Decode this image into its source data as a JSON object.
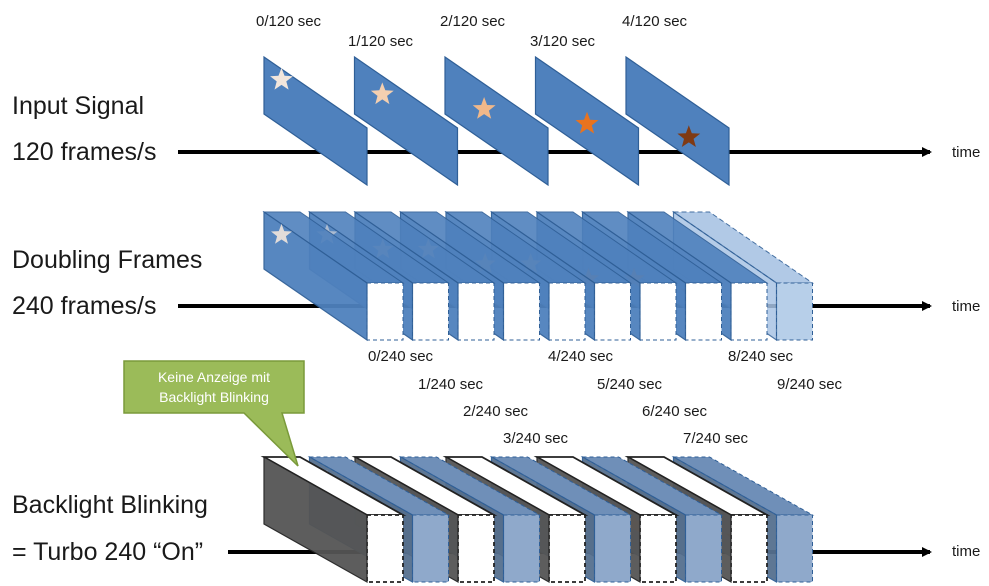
{
  "rows": {
    "input": {
      "line1": "Input Signal",
      "line2": "120 frames/s"
    },
    "doubling": {
      "line1": "Doubling Frames",
      "line2": "240 frames/s"
    },
    "backlight": {
      "line1": "Backlight Blinking",
      "line2": "= Turbo 240 “On”"
    }
  },
  "axis_label": "time",
  "labels_120": [
    "0/120 sec",
    "1/120 sec",
    "2/120 sec",
    "3/120 sec",
    "4/120 sec"
  ],
  "labels_240_doubling": [
    "0/240 sec",
    "1/240 sec",
    "4/240 sec",
    "5/240 sec",
    "8/240 sec",
    "9/240 sec"
  ],
  "labels_240_backlight": [
    "2/240 sec",
    "3/240 sec",
    "6/240 sec",
    "7/240 sec"
  ],
  "callout": {
    "line1": "Keine Anzeige mit",
    "line2": "Backlight Blinking"
  },
  "colors": {
    "frame_blue": "#4f81bd",
    "frame_border": "#2f5f97",
    "black_frame": "#555555",
    "callout_green": "#9bbb59",
    "star_shades": [
      "#f2e6dc",
      "#f4cfb0",
      "#f0b88a",
      "#e8731f",
      "#7f3a14"
    ]
  }
}
